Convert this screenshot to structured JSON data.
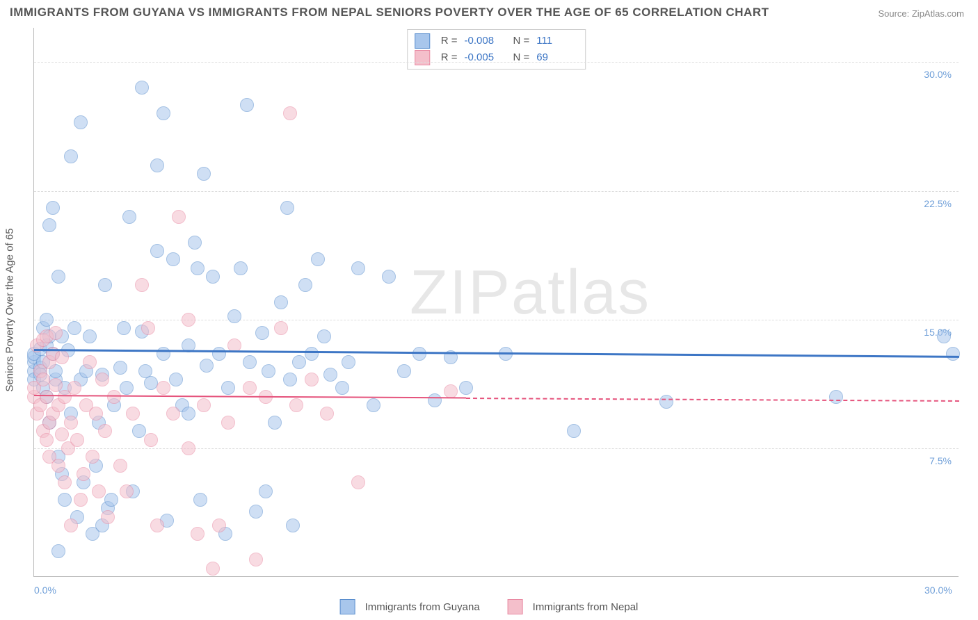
{
  "title": "IMMIGRANTS FROM GUYANA VS IMMIGRANTS FROM NEPAL SENIORS POVERTY OVER THE AGE OF 65 CORRELATION CHART",
  "source_prefix": "Source: ",
  "source_name": "ZipAtlas.com",
  "watermark_bold": "ZIP",
  "watermark_thin": "atlas",
  "yaxis_title": "Seniors Poverty Over the Age of 65",
  "chart": {
    "type": "scatter",
    "xlim": [
      0,
      30
    ],
    "ylim": [
      0,
      32
    ],
    "x_ticks": [
      {
        "v": 0,
        "label": "0.0%"
      },
      {
        "v": 30,
        "label": "30.0%"
      }
    ],
    "y_gridlines": [
      7.5,
      15.0,
      22.5,
      30.0
    ],
    "y_tick_labels": [
      {
        "v": 7.5,
        "label": "7.5%"
      },
      {
        "v": 15.0,
        "label": "15.0%"
      },
      {
        "v": 22.5,
        "label": "22.5%"
      },
      {
        "v": 30.0,
        "label": "30.0%"
      }
    ],
    "y_tick_color": "#6f9fd8",
    "x_tick_color": "#6f9fd8",
    "grid_color": "#dddddd",
    "background_color": "#ffffff",
    "marker_radius": 10,
    "marker_opacity": 0.55,
    "marker_border_width": 1
  },
  "series": [
    {
      "key": "guyana",
      "label": "Immigrants from Guyana",
      "fill": "#a8c6ec",
      "stroke": "#5b8fce",
      "line_color": "#3d76c5",
      "R": "-0.008",
      "N": "111",
      "trend": {
        "x0": 0,
        "y0": 13.3,
        "x1": 30,
        "y1": 12.9,
        "dash_after_x": 30,
        "width": 3
      },
      "points": [
        [
          0.0,
          12.0
        ],
        [
          0.0,
          12.5
        ],
        [
          0.0,
          12.8
        ],
        [
          0.0,
          13.0
        ],
        [
          0.0,
          11.5
        ],
        [
          0.2,
          12.2
        ],
        [
          0.2,
          13.3
        ],
        [
          0.2,
          11.8
        ],
        [
          0.3,
          12.5
        ],
        [
          0.3,
          11.0
        ],
        [
          0.3,
          14.5
        ],
        [
          0.4,
          15.0
        ],
        [
          0.4,
          13.5
        ],
        [
          0.4,
          10.5
        ],
        [
          0.5,
          14.0
        ],
        [
          0.5,
          20.5
        ],
        [
          0.5,
          9.0
        ],
        [
          0.6,
          21.5
        ],
        [
          0.6,
          13.0
        ],
        [
          0.7,
          11.5
        ],
        [
          0.7,
          12.0
        ],
        [
          0.8,
          17.5
        ],
        [
          0.8,
          7.0
        ],
        [
          0.8,
          1.5
        ],
        [
          0.9,
          14.0
        ],
        [
          0.9,
          6.0
        ],
        [
          1.0,
          11.0
        ],
        [
          1.0,
          4.5
        ],
        [
          1.1,
          13.2
        ],
        [
          1.2,
          24.5
        ],
        [
          1.2,
          9.5
        ],
        [
          1.3,
          14.5
        ],
        [
          1.4,
          3.5
        ],
        [
          1.5,
          26.5
        ],
        [
          1.5,
          11.5
        ],
        [
          1.6,
          5.5
        ],
        [
          1.7,
          12.0
        ],
        [
          1.8,
          14.0
        ],
        [
          1.9,
          2.5
        ],
        [
          2.0,
          6.5
        ],
        [
          2.1,
          9.0
        ],
        [
          2.2,
          11.8
        ],
        [
          2.2,
          3.0
        ],
        [
          2.3,
          17.0
        ],
        [
          2.4,
          4.0
        ],
        [
          2.5,
          4.5
        ],
        [
          2.6,
          10.0
        ],
        [
          2.8,
          12.2
        ],
        [
          2.9,
          14.5
        ],
        [
          3.0,
          11.0
        ],
        [
          3.1,
          21.0
        ],
        [
          3.2,
          5.0
        ],
        [
          3.4,
          8.5
        ],
        [
          3.5,
          28.5
        ],
        [
          3.5,
          14.3
        ],
        [
          3.6,
          12.0
        ],
        [
          3.8,
          11.3
        ],
        [
          4.0,
          24.0
        ],
        [
          4.0,
          19.0
        ],
        [
          4.2,
          27.0
        ],
        [
          4.2,
          13.0
        ],
        [
          4.3,
          3.3
        ],
        [
          4.5,
          18.5
        ],
        [
          4.6,
          11.5
        ],
        [
          4.8,
          10.0
        ],
        [
          5.0,
          13.5
        ],
        [
          5.0,
          9.5
        ],
        [
          5.2,
          19.5
        ],
        [
          5.3,
          18.0
        ],
        [
          5.4,
          4.5
        ],
        [
          5.5,
          23.5
        ],
        [
          5.6,
          12.3
        ],
        [
          5.8,
          17.5
        ],
        [
          6.0,
          13.0
        ],
        [
          6.2,
          2.5
        ],
        [
          6.3,
          11.0
        ],
        [
          6.5,
          15.2
        ],
        [
          6.7,
          18.0
        ],
        [
          6.9,
          27.5
        ],
        [
          7.0,
          12.5
        ],
        [
          7.2,
          3.8
        ],
        [
          7.4,
          14.2
        ],
        [
          7.5,
          5.0
        ],
        [
          7.6,
          12.0
        ],
        [
          7.8,
          9.0
        ],
        [
          8.0,
          16.0
        ],
        [
          8.2,
          21.5
        ],
        [
          8.3,
          11.5
        ],
        [
          8.4,
          3.0
        ],
        [
          8.6,
          12.5
        ],
        [
          8.8,
          17.0
        ],
        [
          9.0,
          13.0
        ],
        [
          9.2,
          18.5
        ],
        [
          9.4,
          14.0
        ],
        [
          9.6,
          11.8
        ],
        [
          10.0,
          11.0
        ],
        [
          10.2,
          12.5
        ],
        [
          10.5,
          18.0
        ],
        [
          11.0,
          10.0
        ],
        [
          11.5,
          17.5
        ],
        [
          12.0,
          12.0
        ],
        [
          12.5,
          13.0
        ],
        [
          13.0,
          10.3
        ],
        [
          13.5,
          12.8
        ],
        [
          14.0,
          11.0
        ],
        [
          15.3,
          13.0
        ],
        [
          17.5,
          8.5
        ],
        [
          20.5,
          10.2
        ],
        [
          26.0,
          10.5
        ],
        [
          29.5,
          14.0
        ],
        [
          29.8,
          13.0
        ]
      ]
    },
    {
      "key": "nepal",
      "label": "Immigrants from Nepal",
      "fill": "#f4bfcb",
      "stroke": "#e98aa3",
      "line_color": "#e5537c",
      "R": "-0.005",
      "N": "69",
      "trend": {
        "x0": 0,
        "y0": 10.6,
        "x1": 30,
        "y1": 10.3,
        "dash_after_x": 14,
        "width": 2
      },
      "points": [
        [
          0.0,
          10.5
        ],
        [
          0.0,
          11.0
        ],
        [
          0.1,
          13.5
        ],
        [
          0.1,
          9.5
        ],
        [
          0.2,
          12.0
        ],
        [
          0.2,
          10.0
        ],
        [
          0.3,
          11.5
        ],
        [
          0.3,
          8.5
        ],
        [
          0.3,
          13.8
        ],
        [
          0.4,
          14.0
        ],
        [
          0.4,
          10.5
        ],
        [
          0.4,
          8.0
        ],
        [
          0.5,
          9.0
        ],
        [
          0.5,
          12.5
        ],
        [
          0.5,
          7.0
        ],
        [
          0.6,
          13.0
        ],
        [
          0.6,
          9.5
        ],
        [
          0.7,
          11.2
        ],
        [
          0.7,
          14.2
        ],
        [
          0.8,
          10.0
        ],
        [
          0.8,
          6.5
        ],
        [
          0.9,
          8.3
        ],
        [
          0.9,
          12.8
        ],
        [
          1.0,
          10.5
        ],
        [
          1.0,
          5.5
        ],
        [
          1.1,
          7.5
        ],
        [
          1.2,
          9.0
        ],
        [
          1.2,
          3.0
        ],
        [
          1.3,
          11.0
        ],
        [
          1.4,
          8.0
        ],
        [
          1.5,
          4.5
        ],
        [
          1.6,
          6.0
        ],
        [
          1.7,
          10.0
        ],
        [
          1.8,
          12.5
        ],
        [
          1.9,
          7.0
        ],
        [
          2.0,
          9.5
        ],
        [
          2.1,
          5.0
        ],
        [
          2.2,
          11.5
        ],
        [
          2.3,
          8.5
        ],
        [
          2.4,
          3.5
        ],
        [
          2.6,
          10.5
        ],
        [
          2.8,
          6.5
        ],
        [
          3.0,
          5.0
        ],
        [
          3.2,
          9.5
        ],
        [
          3.5,
          17.0
        ],
        [
          3.7,
          14.5
        ],
        [
          3.8,
          8.0
        ],
        [
          4.0,
          3.0
        ],
        [
          4.2,
          11.0
        ],
        [
          4.5,
          9.5
        ],
        [
          4.7,
          21.0
        ],
        [
          5.0,
          15.0
        ],
        [
          5.0,
          7.5
        ],
        [
          5.3,
          2.5
        ],
        [
          5.5,
          10.0
        ],
        [
          5.8,
          0.5
        ],
        [
          6.0,
          3.0
        ],
        [
          6.3,
          9.0
        ],
        [
          6.5,
          13.5
        ],
        [
          7.0,
          11.0
        ],
        [
          7.2,
          1.0
        ],
        [
          7.5,
          10.5
        ],
        [
          8.0,
          14.5
        ],
        [
          8.3,
          27.0
        ],
        [
          8.5,
          10.0
        ],
        [
          9.0,
          11.5
        ],
        [
          9.5,
          9.5
        ],
        [
          10.5,
          5.5
        ],
        [
          13.5,
          10.8
        ]
      ]
    }
  ],
  "stat_box": {
    "R_label": "R =",
    "N_label": "N ="
  }
}
